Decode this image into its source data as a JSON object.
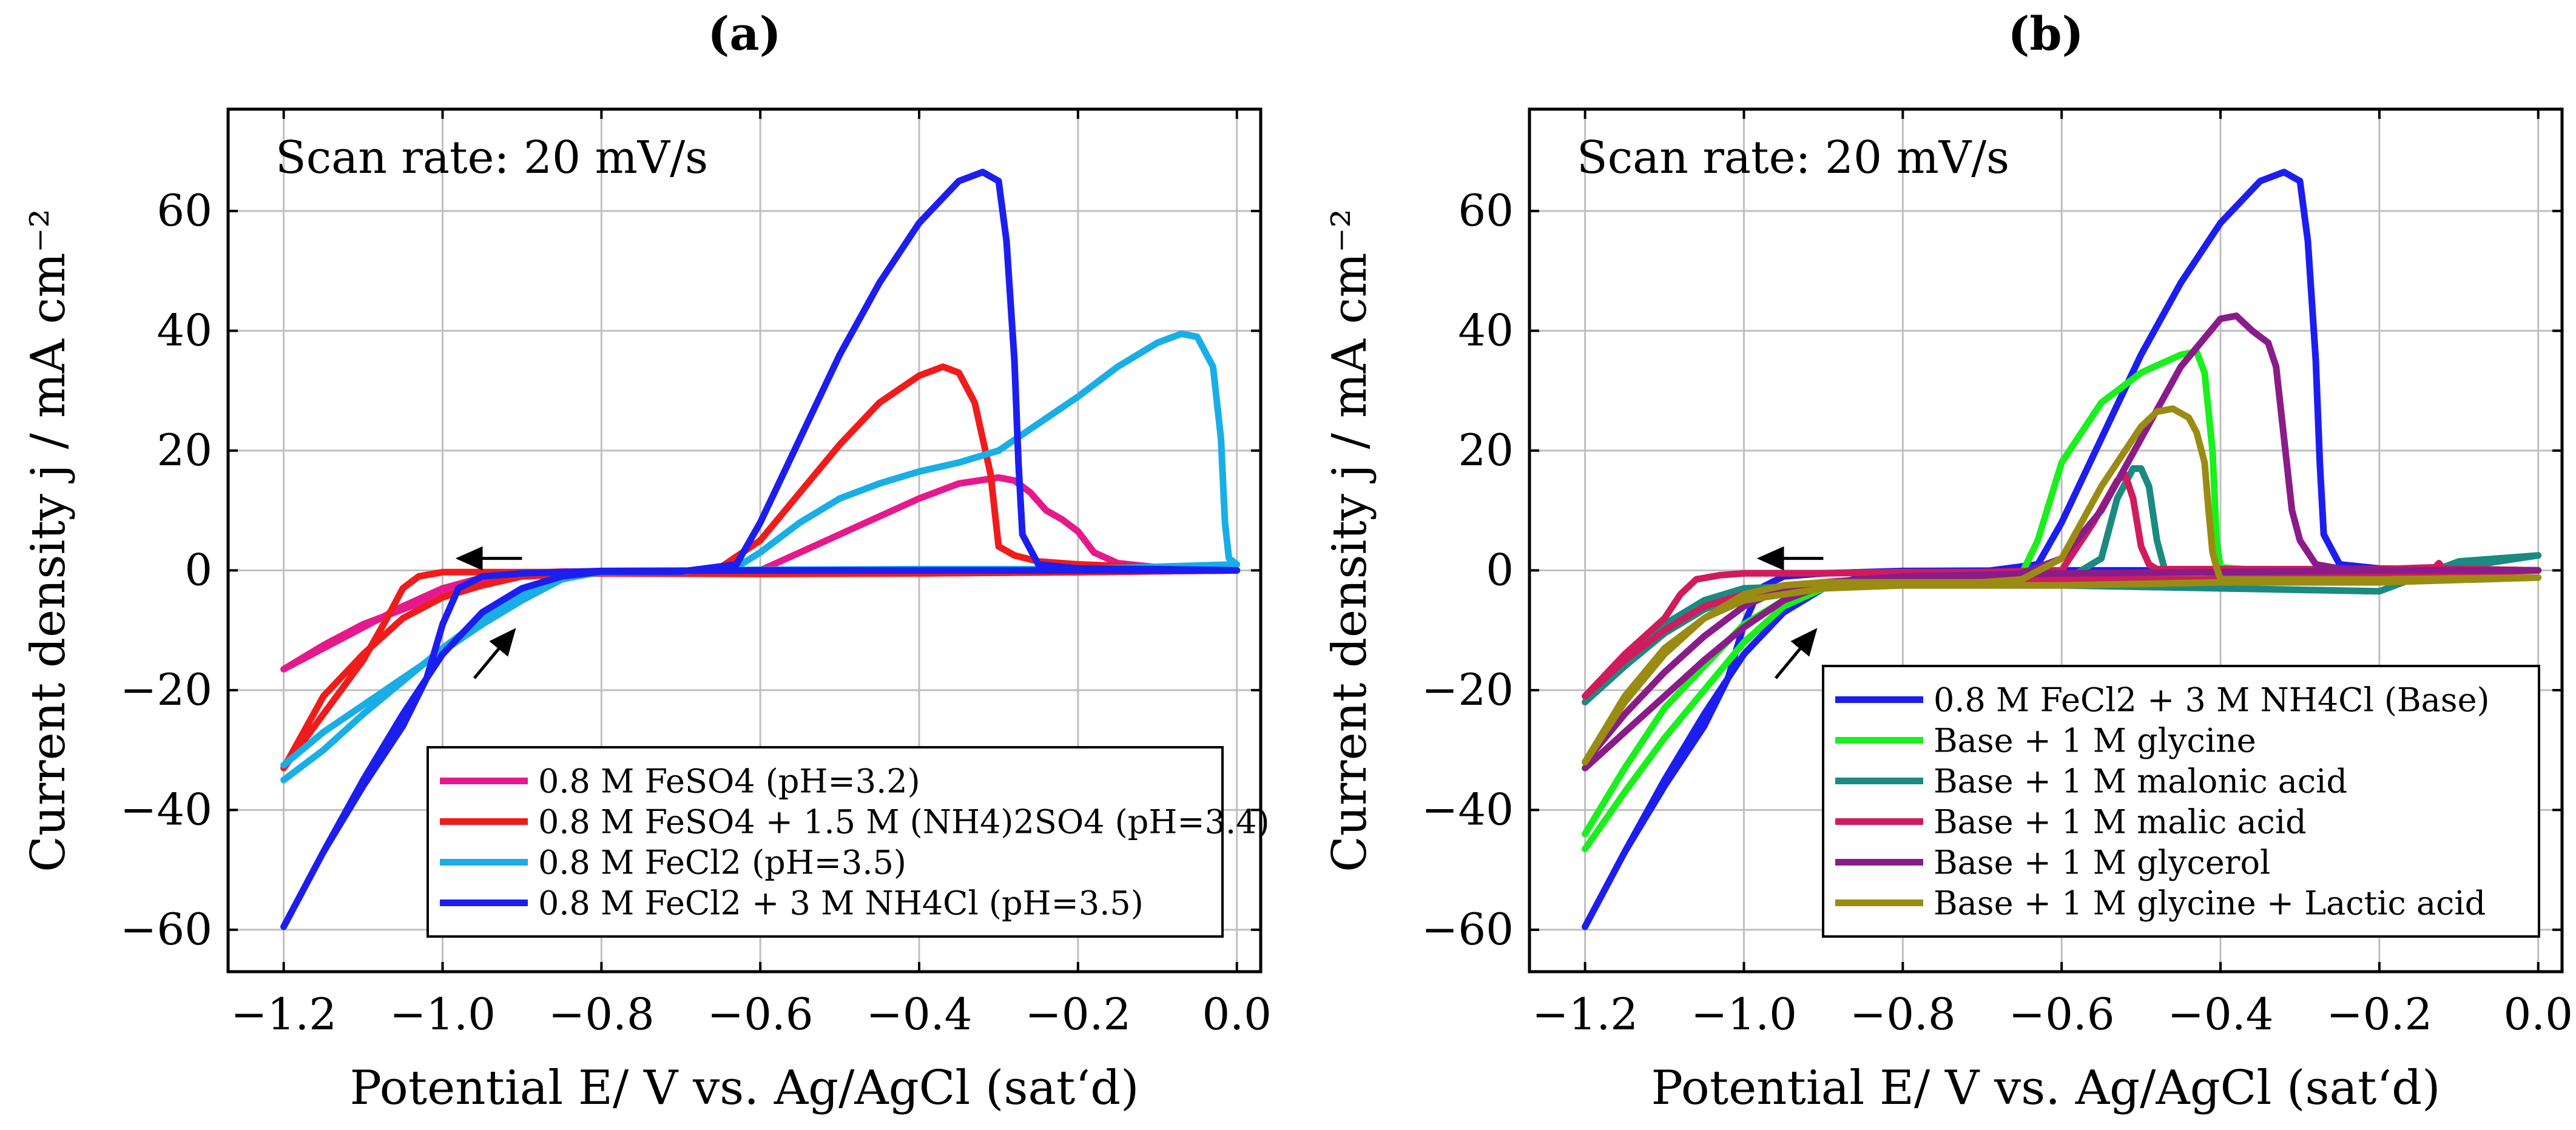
{
  "figure": {
    "background": "#ffffff"
  },
  "chart_data": [
    {
      "type": "line",
      "title": "(a)",
      "xlabel": "Potential E/ V vs. Ag/AgCl (sat‘d)",
      "ylabel": "Current density j / mA cm⁻²",
      "xlim": [
        -1.27,
        0.03
      ],
      "ylim": [
        -67,
        77
      ],
      "xticks": [
        -1.2,
        -1.0,
        -0.8,
        -0.6,
        -0.4,
        -0.2,
        0.0
      ],
      "xtick_labels": [
        "−1.2",
        "−1.0",
        "−0.8",
        "−0.6",
        "−0.4",
        "−0.2",
        "0.0"
      ],
      "yticks": [
        -60,
        -40,
        -20,
        0,
        20,
        40,
        60
      ],
      "ytick_labels": [
        "−60",
        "−40",
        "−20",
        "0",
        "20",
        "40",
        "60"
      ],
      "grid": true,
      "annotation": "Scan rate: 20 mV/s",
      "legend_position": "bottom-right",
      "arrows": [
        {
          "from": [
            -0.9,
            2
          ],
          "to": [
            -0.98,
            2
          ]
        },
        {
          "from": [
            -0.96,
            -18
          ],
          "to": [
            -0.91,
            -10
          ]
        }
      ],
      "series": [
        {
          "name": "0.8 M FeSO4 (pH=3.2)",
          "color": "#e6198c",
          "x": [
            -1.2,
            -1.15,
            -1.1,
            -1.05,
            -1.0,
            -0.95,
            -0.9,
            -0.85,
            -0.8,
            -0.7,
            -0.6,
            -0.5,
            -0.4,
            -0.35,
            -0.3,
            -0.28,
            -0.26,
            -0.24,
            -0.22,
            -0.2,
            -0.18,
            -0.15,
            -0.1,
            -0.05,
            0.0,
            -0.2,
            -0.4,
            -0.6,
            -0.8,
            -0.85,
            -0.9,
            -0.95,
            -1.0,
            -1.05,
            -1.1,
            -1.15,
            -1.2
          ],
          "y": [
            -16.5,
            -13,
            -9.5,
            -6,
            -3,
            -1.2,
            -0.5,
            -0.2,
            -0.2,
            -0.2,
            0,
            6,
            12,
            14.5,
            15.5,
            15,
            13,
            10,
            8.5,
            6.5,
            3,
            1.2,
            0.5,
            0.2,
            0,
            -0.3,
            -0.5,
            -0.5,
            -0.4,
            -0.5,
            -1,
            -2,
            -4,
            -6.5,
            -9,
            -12.5,
            -16.5
          ]
        },
        {
          "name": "0.8 M FeSO4 + 1.5 M (NH4)2SO4 (pH=3.4)",
          "color": "#f01c1c",
          "x": [
            -1.2,
            -1.15,
            -1.1,
            -1.07,
            -1.05,
            -1.03,
            -1.0,
            -0.9,
            -0.8,
            -0.7,
            -0.65,
            -0.6,
            -0.55,
            -0.5,
            -0.45,
            -0.4,
            -0.37,
            -0.35,
            -0.33,
            -0.31,
            -0.3,
            -0.28,
            -0.25,
            -0.2,
            -0.1,
            0.0,
            -0.2,
            -0.4,
            -0.6,
            -0.8,
            -0.9,
            -0.95,
            -1.0,
            -1.05,
            -1.1,
            -1.15,
            -1.2
          ],
          "y": [
            -33,
            -24,
            -15,
            -8,
            -3,
            -1,
            -0.3,
            -0.3,
            -0.3,
            -0.3,
            0.5,
            5,
            13,
            21,
            28,
            32.5,
            34,
            33,
            28,
            16,
            4,
            2.5,
            1.5,
            1,
            0.5,
            0,
            -0.3,
            -0.5,
            -0.6,
            -0.5,
            -1,
            -2.5,
            -4.5,
            -8,
            -14,
            -21,
            -33
          ]
        },
        {
          "name": "0.8 M FeCl2 (pH=3.5)",
          "color": "#19aee6",
          "x": [
            -1.2,
            -1.15,
            -1.1,
            -1.05,
            -1.0,
            -0.95,
            -0.9,
            -0.85,
            -0.8,
            -0.7,
            -0.63,
            -0.6,
            -0.55,
            -0.5,
            -0.45,
            -0.4,
            -0.35,
            -0.3,
            -0.25,
            -0.2,
            -0.15,
            -0.1,
            -0.07,
            -0.05,
            -0.03,
            -0.02,
            -0.015,
            -0.01,
            0.0,
            -0.2,
            -0.4,
            -0.6,
            -0.8,
            -0.85,
            -0.9,
            -0.95,
            -1.0,
            -1.05,
            -1.1,
            -1.15,
            -1.2
          ],
          "y": [
            -35,
            -30,
            -24,
            -18.5,
            -13,
            -8,
            -4,
            -1.3,
            -0.3,
            -0.2,
            0.5,
            3,
            8,
            12,
            14.5,
            16.5,
            18,
            20,
            24.5,
            29,
            34,
            38,
            39.5,
            39,
            34,
            22,
            8,
            2,
            1,
            0.2,
            0.2,
            0.1,
            -0.2,
            -1.5,
            -5,
            -9,
            -13.5,
            -18,
            -22.5,
            -27,
            -32.5
          ]
        },
        {
          "name": "0.8 M FeCl2 + 3 M NH4Cl (pH=3.5)",
          "color": "#1c1ef0",
          "x": [
            -1.2,
            -1.15,
            -1.1,
            -1.05,
            -1.0,
            -0.95,
            -0.9,
            -0.85,
            -0.8,
            -0.7,
            -0.63,
            -0.6,
            -0.55,
            -0.5,
            -0.45,
            -0.4,
            -0.35,
            -0.32,
            -0.3,
            -0.29,
            -0.28,
            -0.275,
            -0.27,
            -0.25,
            -0.2,
            -0.1,
            0.0,
            -0.2,
            -0.4,
            -0.6,
            -0.8,
            -0.9,
            -0.95,
            -0.98,
            -1.0,
            -1.02,
            -1.05,
            -1.1,
            -1.15,
            -1.2
          ],
          "y": [
            -59.5,
            -47,
            -35,
            -24,
            -14,
            -7,
            -3,
            -1,
            -0.2,
            -0.2,
            1,
            8,
            22,
            36,
            48,
            58,
            65,
            66.5,
            65,
            55,
            35,
            18,
            6,
            1,
            0.3,
            0.2,
            0,
            0,
            0,
            0,
            -0.1,
            -0.5,
            -1,
            -3,
            -9,
            -18,
            -26,
            -36,
            -47,
            -59.5
          ]
        }
      ]
    },
    {
      "type": "line",
      "title": "(b)",
      "xlabel": "Potential E/ V vs. Ag/AgCl (sat‘d)",
      "ylabel": "Current density j / mA cm⁻²",
      "xlim": [
        -1.27,
        0.03
      ],
      "ylim": [
        -67,
        77
      ],
      "xticks": [
        -1.2,
        -1.0,
        -0.8,
        -0.6,
        -0.4,
        -0.2,
        0.0
      ],
      "xtick_labels": [
        "−1.2",
        "−1.0",
        "−0.8",
        "−0.6",
        "−0.4",
        "−0.2",
        "0.0"
      ],
      "yticks": [
        -60,
        -40,
        -20,
        0,
        20,
        40,
        60
      ],
      "ytick_labels": [
        "−60",
        "−40",
        "−20",
        "0",
        "20",
        "40",
        "60"
      ],
      "grid": true,
      "annotation": "Scan rate: 20 mV/s",
      "legend_position": "bottom-right",
      "arrows": [
        {
          "from": [
            -0.9,
            2
          ],
          "to": [
            -0.98,
            2
          ]
        },
        {
          "from": [
            -0.96,
            -18
          ],
          "to": [
            -0.91,
            -10
          ]
        }
      ],
      "series": [
        {
          "name": "0.8 M FeCl2 + 3 M NH4Cl (Base)",
          "color": "#1c1ef0",
          "x": [
            -1.2,
            -1.15,
            -1.1,
            -1.05,
            -1.0,
            -0.95,
            -0.9,
            -0.85,
            -0.8,
            -0.7,
            -0.63,
            -0.6,
            -0.55,
            -0.5,
            -0.45,
            -0.4,
            -0.35,
            -0.32,
            -0.3,
            -0.29,
            -0.28,
            -0.275,
            -0.27,
            -0.25,
            -0.2,
            -0.1,
            0.0,
            -0.2,
            -0.4,
            -0.6,
            -0.8,
            -0.9,
            -0.95,
            -0.98,
            -1.0,
            -1.02,
            -1.05,
            -1.1,
            -1.15,
            -1.2
          ],
          "y": [
            -59.5,
            -47,
            -35,
            -24,
            -14,
            -7,
            -3,
            -1,
            -0.2,
            -0.2,
            1,
            8,
            22,
            36,
            48,
            58,
            65,
            66.5,
            65,
            55,
            35,
            18,
            6,
            1,
            0.3,
            0.2,
            0,
            0,
            0,
            0,
            -0.1,
            -0.5,
            -1,
            -3,
            -9,
            -18,
            -26,
            -36,
            -47,
            -59.5
          ]
        },
        {
          "name": "Base + 1 M glycine",
          "color": "#19f01c",
          "x": [
            -1.2,
            -1.15,
            -1.1,
            -1.05,
            -1.0,
            -0.95,
            -0.9,
            -0.85,
            -0.8,
            -0.7,
            -0.65,
            -0.63,
            -0.6,
            -0.55,
            -0.5,
            -0.45,
            -0.43,
            -0.42,
            -0.41,
            -0.405,
            -0.4,
            -0.35,
            -0.2,
            0.0,
            -0.2,
            -0.4,
            -0.6,
            -0.8,
            -0.9,
            -0.95,
            -1.0,
            -1.05,
            -1.1,
            -1.15,
            -1.2
          ],
          "y": [
            -46.5,
            -37,
            -28,
            -20,
            -12,
            -6,
            -3,
            -2,
            -2,
            -1.5,
            -0.5,
            5,
            18,
            28,
            33,
            36,
            36.5,
            33,
            20,
            5,
            0.5,
            0,
            0,
            0,
            -0.5,
            -0.5,
            -1,
            -2,
            -3,
            -5,
            -9,
            -16,
            -23,
            -33,
            -44
          ]
        },
        {
          "name": "Base + 1 M malonic acid",
          "color": "#1a8a82",
          "x": [
            -1.2,
            -1.15,
            -1.1,
            -1.05,
            -1.0,
            -0.95,
            -0.9,
            -0.8,
            -0.7,
            -0.6,
            -0.55,
            -0.53,
            -0.51,
            -0.5,
            -0.49,
            -0.48,
            -0.47,
            -0.4,
            -0.3,
            -0.2,
            -0.1,
            0.0,
            -0.1,
            -0.2,
            -0.4,
            -0.6,
            -0.8,
            -0.9,
            -1.0,
            -1.05,
            -1.1,
            -1.15,
            -1.2
          ],
          "y": [
            -22,
            -16,
            -10.5,
            -6.5,
            -4,
            -3,
            -2.5,
            -2.5,
            -2.5,
            -2,
            2,
            12,
            17,
            17,
            14,
            5,
            0,
            -0.5,
            -0.5,
            -0.3,
            0.5,
            2.5,
            1.5,
            -3.5,
            -3,
            -2.5,
            -2.5,
            -2.5,
            -3,
            -5,
            -9,
            -15,
            -21
          ]
        },
        {
          "name": "Base + 1 M malic acid",
          "color": "#d01c5c",
          "x": [
            -1.2,
            -1.15,
            -1.1,
            -1.08,
            -1.06,
            -1.03,
            -1.0,
            -0.9,
            -0.8,
            -0.7,
            -0.6,
            -0.56,
            -0.53,
            -0.52,
            -0.51,
            -0.5,
            -0.49,
            -0.48,
            -0.4,
            -0.2,
            -0.13,
            -0.125,
            -0.12,
            0.0,
            -0.2,
            -0.4,
            -0.6,
            -0.8,
            -0.9,
            -1.0,
            -1.05,
            -1.1,
            -1.15,
            -1.2
          ],
          "y": [
            -21,
            -14,
            -8,
            -4,
            -1.5,
            -0.8,
            -0.5,
            -0.5,
            -0.3,
            -0.3,
            0,
            8,
            15,
            16,
            12,
            4,
            1,
            0.2,
            0.2,
            0.2,
            0.5,
            1.2,
            0.3,
            0,
            -1,
            -1.5,
            -1.5,
            -1.5,
            -2,
            -4,
            -6,
            -10,
            -15,
            -21
          ]
        },
        {
          "name": "Base + 1 M glycerol",
          "color": "#8a1c8a",
          "x": [
            -1.2,
            -1.15,
            -1.1,
            -1.05,
            -1.0,
            -0.95,
            -0.9,
            -0.8,
            -0.7,
            -0.65,
            -0.6,
            -0.55,
            -0.5,
            -0.45,
            -0.4,
            -0.38,
            -0.36,
            -0.34,
            -0.33,
            -0.32,
            -0.31,
            -0.3,
            -0.28,
            -0.25,
            -0.2,
            0.0,
            -0.2,
            -0.4,
            -0.6,
            -0.8,
            -0.9,
            -0.95,
            -1.0,
            -1.05,
            -1.1,
            -1.15,
            -1.2
          ],
          "y": [
            -33,
            -27,
            -21,
            -15,
            -9.5,
            -5,
            -2.5,
            -2,
            -1.5,
            -0.5,
            2,
            10,
            22,
            34,
            42,
            42.5,
            40,
            38,
            34,
            22,
            10,
            5,
            1,
            0.3,
            0,
            0,
            0,
            -0.3,
            -0.5,
            -1,
            -2,
            -3,
            -6,
            -11,
            -17,
            -24,
            -32
          ]
        },
        {
          "name": "Base + 1 M glycine + Lactic acid",
          "color": "#9a8c12",
          "x": [
            -1.2,
            -1.15,
            -1.1,
            -1.05,
            -1.0,
            -0.95,
            -0.9,
            -0.8,
            -0.7,
            -0.65,
            -0.6,
            -0.55,
            -0.5,
            -0.48,
            -0.46,
            -0.44,
            -0.43,
            -0.42,
            -0.415,
            -0.41,
            -0.405,
            -0.4,
            -0.2,
            0.0,
            -0.2,
            -0.4,
            -0.6,
            -0.8,
            -0.9,
            -1.0,
            -1.05,
            -1.1,
            -1.15,
            -1.2
          ],
          "y": [
            -32,
            -22,
            -14,
            -8,
            -4,
            -2.5,
            -2,
            -2,
            -2,
            -1.5,
            2,
            14,
            24,
            26.5,
            27,
            25.5,
            23,
            18,
            10,
            3,
            0.5,
            -1.5,
            -1.5,
            -1.2,
            -2,
            -2,
            -2.5,
            -2.5,
            -3,
            -5,
            -8,
            -13,
            -21,
            -32
          ]
        }
      ]
    }
  ]
}
